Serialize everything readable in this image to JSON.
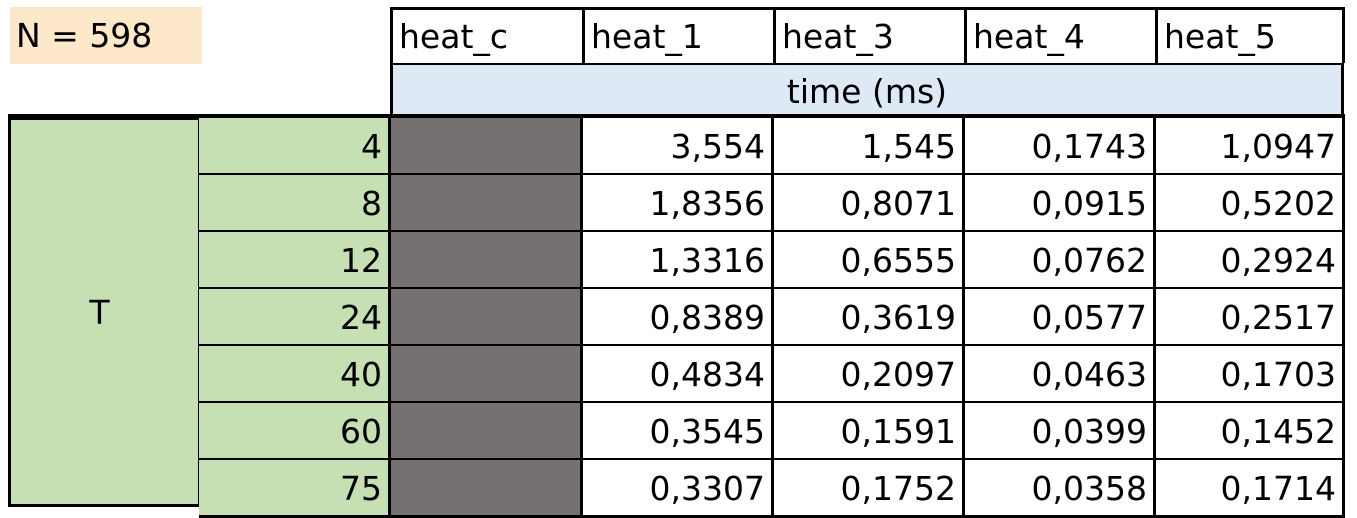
{
  "n_label": "N = 598",
  "columns": [
    "heat_c",
    "heat_1",
    "heat_3",
    "heat_4",
    "heat_5"
  ],
  "unit_label": "time (ms)",
  "row_group_label": "T",
  "rows": [
    {
      "t": "4",
      "values": [
        "3,554",
        "1,545",
        "0,1743",
        "1,0947"
      ]
    },
    {
      "t": "8",
      "values": [
        "1,8356",
        "0,8071",
        "0,0915",
        "0,5202"
      ]
    },
    {
      "t": "12",
      "values": [
        "1,3316",
        "0,6555",
        "0,0762",
        "0,2924"
      ]
    },
    {
      "t": "24",
      "values": [
        "0,8389",
        "0,3619",
        "0,0577",
        "0,2517"
      ]
    },
    {
      "t": "40",
      "values": [
        "0,4834",
        "0,2097",
        "0,0463",
        "0,1703"
      ]
    },
    {
      "t": "60",
      "values": [
        "0,3545",
        "0,1591",
        "0,0399",
        "0,1452"
      ]
    },
    {
      "t": "75",
      "values": [
        "0,3307",
        "0,1752",
        "0,0358",
        "0,1714"
      ]
    }
  ],
  "colors": {
    "label_fill": "#fde9c9",
    "unit_fill": "#dde9f5",
    "t_fill": "#c6dfb3",
    "heat_c_fill": "#757171"
  }
}
